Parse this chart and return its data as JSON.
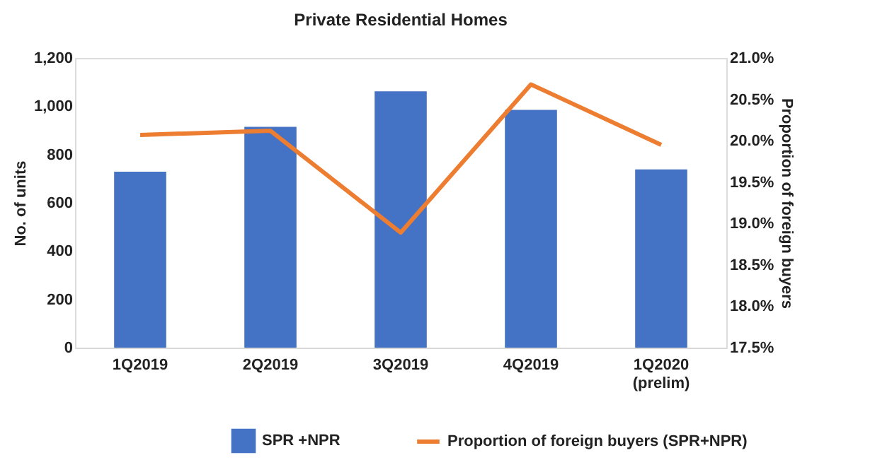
{
  "chart_data": {
    "type": "bar",
    "title": "Private Residential Homes",
    "categories": [
      "1Q2019",
      "2Q2019",
      "3Q2019",
      "4Q2019",
      "1Q2020\n(prelim)"
    ],
    "series": [
      {
        "name": "SPR +NPR",
        "color": "#4472c4",
        "values": [
          729,
          915,
          1062,
          985,
          738
        ]
      },
      {
        "name": "Proportion of foreign buyers (SPR+NPR)",
        "type": "line",
        "axis": "y2",
        "color": "#ed7d31",
        "values": [
          20.07,
          20.12,
          18.89,
          20.68,
          19.95
        ]
      }
    ],
    "ylabel": "No. of units",
    "y2label": "Proportion of foreign buyers",
    "ylim": [
      0,
      1200
    ],
    "yticks": [
      {
        "value": 0,
        "label": "0"
      },
      {
        "value": 200,
        "label": "200"
      },
      {
        "value": 400,
        "label": "400"
      },
      {
        "value": 600,
        "label": "600"
      },
      {
        "value": 800,
        "label": "800"
      },
      {
        "value": 1000,
        "label": "1,000"
      },
      {
        "value": 1200,
        "label": "1,200"
      }
    ],
    "y2lim": [
      17.5,
      21.0
    ],
    "y2ticks": [
      {
        "value": 17.5,
        "label": "17.5%"
      },
      {
        "value": 18.0,
        "label": "18.0%"
      },
      {
        "value": 18.5,
        "label": "18.5%"
      },
      {
        "value": 19.0,
        "label": "19.0%"
      },
      {
        "value": 19.5,
        "label": "19.5%"
      },
      {
        "value": 20.0,
        "label": "20.0%"
      },
      {
        "value": 20.5,
        "label": "20.5%"
      },
      {
        "value": 21.0,
        "label": "21.0%"
      }
    ],
    "grid": false,
    "legend": "bottom",
    "marker": "none",
    "line_style": "solid"
  }
}
